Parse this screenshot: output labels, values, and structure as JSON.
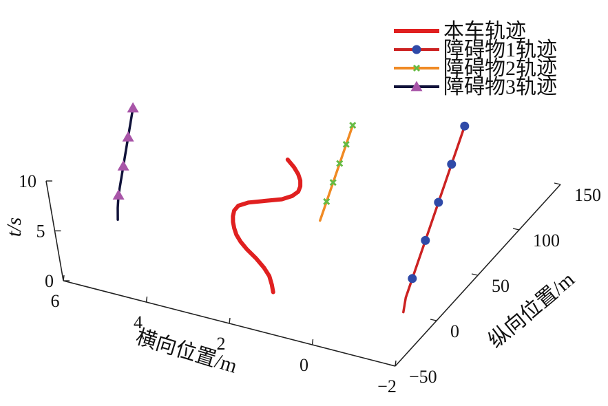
{
  "chart_data": {
    "type": "line",
    "view": "3d",
    "title": "",
    "axes": {
      "x": {
        "label": "横向位置/m",
        "range": [
          -2,
          6
        ],
        "ticks": [
          "6",
          "4",
          "2",
          "0",
          "−2"
        ]
      },
      "y": {
        "label": "纵向位置/m",
        "range": [
          -50,
          150
        ],
        "ticks": [
          "−50",
          "0",
          "50",
          "100",
          "150"
        ]
      },
      "z": {
        "label": "t/s",
        "range": [
          0,
          10
        ],
        "ticks": [
          "0",
          "5",
          "10"
        ]
      }
    },
    "legend": {
      "placement": "top-right"
    },
    "series": [
      {
        "name": "本车轨迹",
        "color": "#e02020",
        "marker": "none",
        "points": [
          [
            1.7,
            -12,
            0
          ],
          [
            1.75,
            -10,
            0.5
          ],
          [
            1.85,
            -7,
            1
          ],
          [
            2.0,
            -5,
            1.5
          ],
          [
            2.2,
            -3,
            2
          ],
          [
            2.45,
            -1,
            2.5
          ],
          [
            2.6,
            0,
            3
          ],
          [
            2.7,
            1,
            3.5
          ],
          [
            2.75,
            2,
            4
          ],
          [
            2.78,
            3,
            4.5
          ],
          [
            2.78,
            4,
            5
          ],
          [
            2.75,
            5,
            5.5
          ],
          [
            2.65,
            6,
            6
          ],
          [
            2.4,
            7,
            6.5
          ],
          [
            2.0,
            8,
            7
          ],
          [
            1.6,
            9,
            7.5
          ],
          [
            1.35,
            10,
            8
          ],
          [
            1.2,
            11,
            8.5
          ],
          [
            1.15,
            12,
            9
          ],
          [
            1.15,
            13,
            9.5
          ],
          [
            1.2,
            14,
            10
          ],
          [
            1.3,
            15,
            10.5
          ],
          [
            1.45,
            16,
            11
          ]
        ]
      },
      {
        "name": "障碍物1轨迹",
        "color": "#cc2222",
        "markerColor": "#2f4aa8",
        "marker": "circle",
        "points": [
          [
            -1.2,
            0,
            0
          ],
          [
            -1.2,
            5,
            1
          ],
          [
            -1.2,
            15,
            2
          ],
          [
            -1.2,
            25,
            3
          ],
          [
            -1.2,
            35,
            4
          ],
          [
            -1.2,
            45,
            5
          ],
          [
            -1.2,
            55,
            6
          ],
          [
            -1.2,
            65,
            7
          ],
          [
            -1.2,
            75,
            8
          ],
          [
            -1.2,
            85,
            9
          ],
          [
            -1.2,
            95,
            10
          ]
        ],
        "markers": [
          [
            -1.2,
            15,
            2
          ],
          [
            -1.2,
            35,
            4
          ],
          [
            -1.2,
            55,
            6
          ],
          [
            -1.2,
            75,
            8
          ],
          [
            -1.2,
            95,
            10
          ]
        ]
      },
      {
        "name": "障碍物2轨迹",
        "color": "#f08a24",
        "markerColor": "#66bb44",
        "marker": "cross",
        "points": [
          [
            1.0,
            20,
            5
          ],
          [
            1.0,
            30,
            6
          ],
          [
            1.0,
            40,
            7
          ],
          [
            1.0,
            50,
            8
          ],
          [
            1.0,
            60,
            9
          ],
          [
            1.0,
            70,
            10
          ]
        ],
        "markers": [
          [
            1.0,
            30,
            6
          ],
          [
            1.0,
            40,
            7
          ],
          [
            1.0,
            50,
            8
          ],
          [
            1.0,
            60,
            9
          ],
          [
            1.0,
            70,
            10
          ]
        ]
      },
      {
        "name": "障碍物3轨迹",
        "color": "#10123a",
        "markerColor": "#a855a8",
        "marker": "triangle",
        "points": [
          [
            5.6,
            0,
            2
          ],
          [
            5.6,
            2,
            3
          ],
          [
            5.6,
            5,
            4
          ],
          [
            5.6,
            10,
            5
          ],
          [
            5.6,
            15,
            6
          ],
          [
            5.6,
            20,
            7
          ],
          [
            5.6,
            25,
            8
          ],
          [
            5.6,
            30,
            9
          ],
          [
            5.6,
            35,
            10
          ]
        ],
        "markers": [
          [
            5.6,
            5,
            4
          ],
          [
            5.6,
            15,
            6
          ],
          [
            5.6,
            25,
            8
          ],
          [
            5.6,
            35,
            10
          ]
        ]
      }
    ]
  }
}
